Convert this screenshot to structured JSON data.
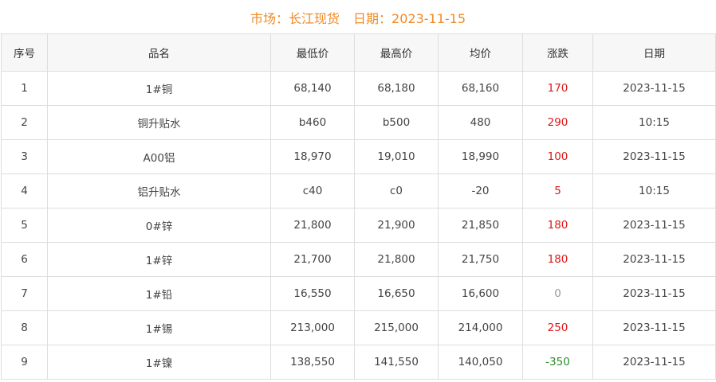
{
  "header": {
    "market": "市场：长江现货",
    "date": "日期：2023-11-15"
  },
  "colors": {
    "title": "#f08a24",
    "up": "#e01818",
    "down": "#2a8a2a",
    "flat": "#999999"
  },
  "columns": [
    "序号",
    "品名",
    "最低价",
    "最高价",
    "均价",
    "涨跌",
    "日期"
  ],
  "rows": [
    {
      "no": "1",
      "name": "1#铜",
      "low": "68,140",
      "high": "68,180",
      "avg": "68,160",
      "change": "170",
      "dir": "up",
      "date": "2023-11-15"
    },
    {
      "no": "2",
      "name": "铜升贴水",
      "low": "b460",
      "high": "b500",
      "avg": "480",
      "change": "290",
      "dir": "up",
      "date": "10:15"
    },
    {
      "no": "3",
      "name": "A00铝",
      "low": "18,970",
      "high": "19,010",
      "avg": "18,990",
      "change": "100",
      "dir": "up",
      "date": "2023-11-15"
    },
    {
      "no": "4",
      "name": "铝升贴水",
      "low": "c40",
      "high": "c0",
      "avg": "-20",
      "change": "5",
      "dir": "up",
      "date": "10:15"
    },
    {
      "no": "5",
      "name": "0#锌",
      "low": "21,800",
      "high": "21,900",
      "avg": "21,850",
      "change": "180",
      "dir": "up",
      "date": "2023-11-15"
    },
    {
      "no": "6",
      "name": "1#锌",
      "low": "21,700",
      "high": "21,800",
      "avg": "21,750",
      "change": "180",
      "dir": "up",
      "date": "2023-11-15"
    },
    {
      "no": "7",
      "name": "1#铅",
      "low": "16,550",
      "high": "16,650",
      "avg": "16,600",
      "change": "0",
      "dir": "flat",
      "date": "2023-11-15"
    },
    {
      "no": "8",
      "name": "1#锡",
      "low": "213,000",
      "high": "215,000",
      "avg": "214,000",
      "change": "250",
      "dir": "up",
      "date": "2023-11-15"
    },
    {
      "no": "9",
      "name": "1#镍",
      "low": "138,550",
      "high": "141,550",
      "avg": "140,050",
      "change": "-350",
      "dir": "down",
      "date": "2023-11-15"
    }
  ]
}
